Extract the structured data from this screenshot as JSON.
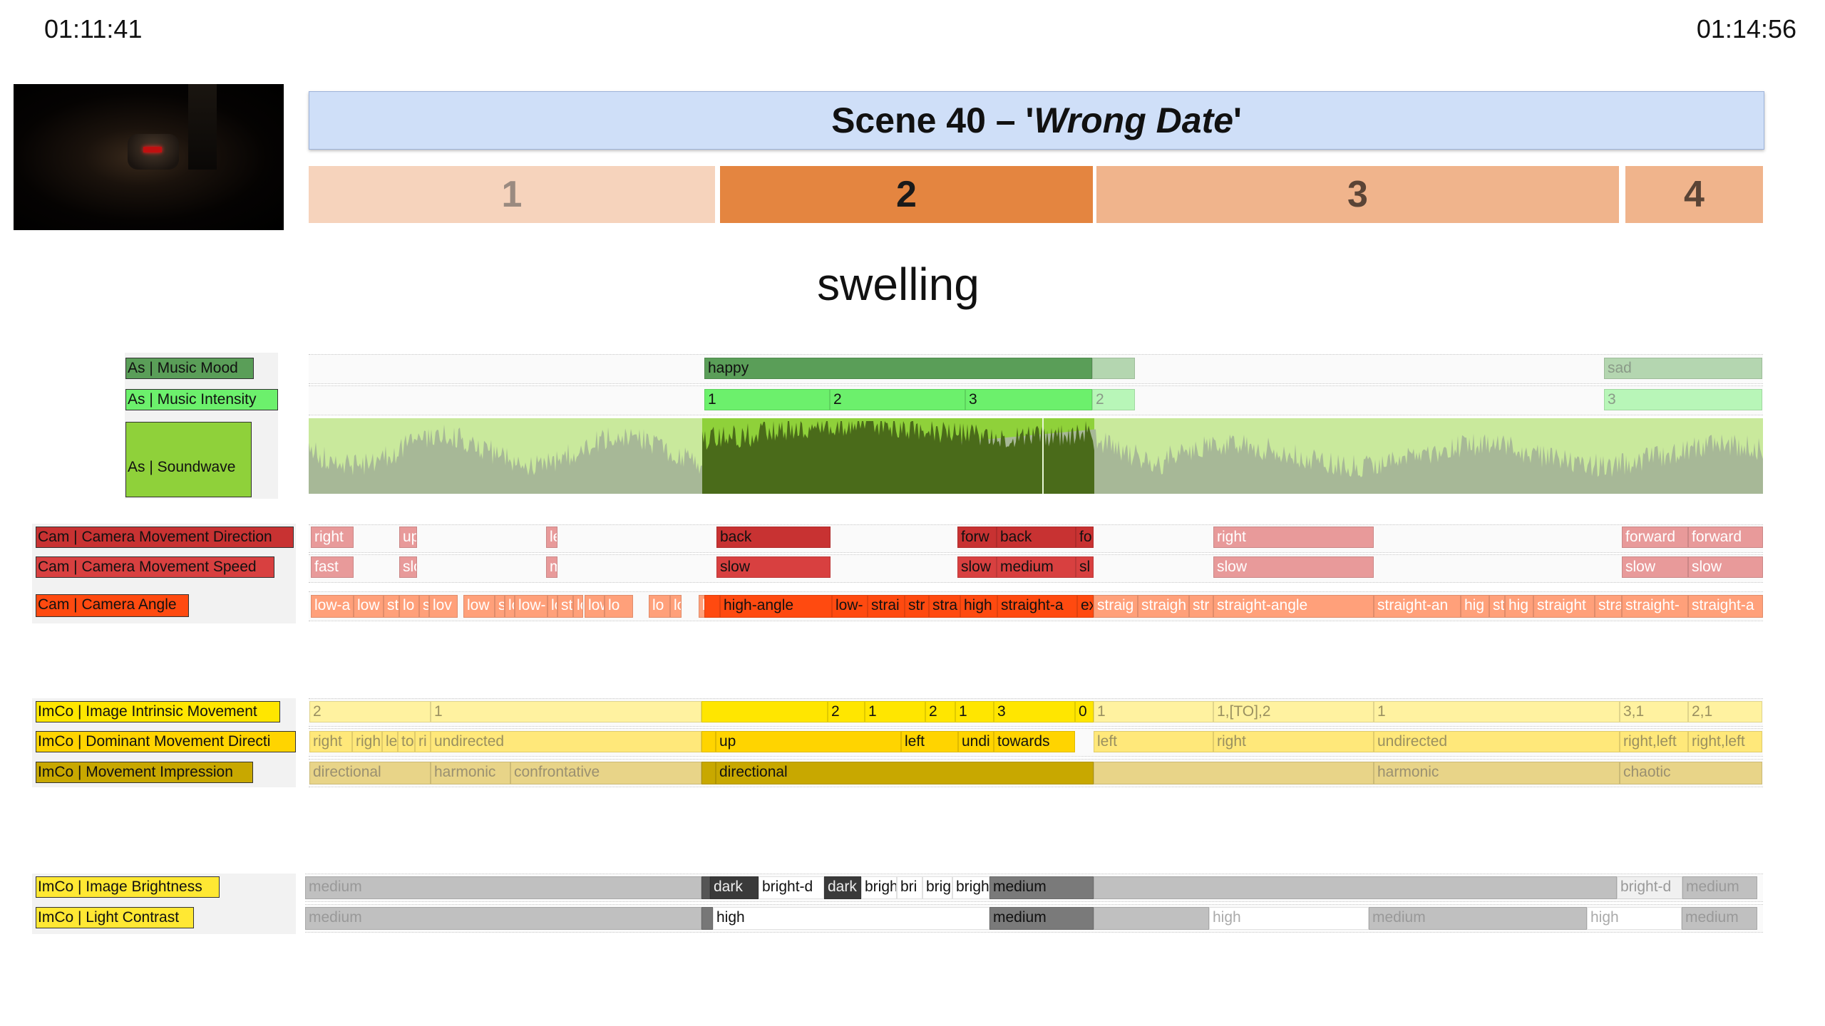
{
  "header": {
    "start_time": "01:11:41",
    "end_time": "01:14:56"
  },
  "video_thumbnail": {
    "icon": "video-frame-dark-room-clock"
  },
  "scene": {
    "prefix": "Scene 40 – '",
    "title": "Wrong Date",
    "suffix": "'",
    "segments": [
      {
        "label": "1",
        "color": "#f6d3bc",
        "text_color": "#9a8a80"
      },
      {
        "label": "2",
        "color": "#e48540",
        "text_color": "#1a1a1a"
      },
      {
        "label": "3",
        "color": "#f0b48c",
        "text_color": "#5a4436"
      },
      {
        "label": "4",
        "color": "#f0b48c",
        "text_color": "#5a4436"
      }
    ]
  },
  "mood_word": "swelling",
  "tracks": {
    "music_mood": {
      "label": "As | Music Mood",
      "color": "#5a9e58",
      "annotations": [
        "happy",
        "",
        "sad"
      ]
    },
    "music_intensity": {
      "label": "As | Music Intensity",
      "color": "#6cf06c",
      "annotations": [
        "1",
        "2",
        "3",
        "2",
        "3"
      ]
    },
    "soundwave": {
      "label": "As | Soundwave",
      "color": "#8fd13a"
    },
    "cam_direction": {
      "label": "Cam | Camera Movement Direction",
      "color": "#c83232",
      "annotations": [
        "right",
        "up",
        "le",
        "back",
        "forw",
        "back",
        "fo",
        "right",
        "forward",
        "forward"
      ]
    },
    "cam_speed": {
      "label": "Cam | Camera Movement Speed",
      "color": "#d84040",
      "annotations": [
        "fast",
        "slo",
        "m",
        "slow",
        "slow",
        "medium",
        "sl",
        "slow",
        "slow",
        "slow"
      ]
    },
    "cam_angle": {
      "label": "Cam | Camera Angle",
      "color": "#ff4a10",
      "annotations": [
        "low-a",
        "low",
        "st",
        "lo",
        "s",
        "lov",
        "low",
        "s",
        "lo",
        "low-",
        "lo",
        "stra",
        "lo",
        "low-",
        "lo",
        "lo",
        "low",
        "lo",
        "",
        "high-angle",
        "low-",
        "strai",
        "str",
        "stra",
        "high",
        "straight-a",
        "ex",
        "straig",
        "straigh",
        "str",
        "straight-angle",
        "straight-an",
        "hig",
        "st",
        "hig",
        "straight",
        "stra",
        "straight-",
        "straight-a"
      ]
    },
    "intrinsic_movement": {
      "label": "ImCo | Image Intrinsic Movement",
      "color": "#ffe600",
      "annotations": [
        "2",
        "1",
        "",
        "2",
        "1",
        "2",
        "1",
        "3",
        "0",
        "1",
        "1,[TO],2",
        "1",
        "3,1",
        "2,1"
      ]
    },
    "dominant_direction": {
      "label": "ImCo | Dominant Movement Directi",
      "color": "#ffd400",
      "annotations": [
        "right",
        "righ",
        "le",
        "to",
        "ri",
        "undirected",
        "",
        "up",
        "left",
        "undi",
        "towards",
        "left",
        "right",
        "undirected",
        "right,left",
        "right,left"
      ]
    },
    "movement_impression": {
      "label": "ImCo | Movement Impression",
      "color": "#c8a800",
      "annotations": [
        "directional",
        "harmonic",
        "confrontative",
        "",
        "directional",
        "",
        "harmonic",
        "chaotic"
      ]
    },
    "brightness": {
      "label": "ImCo | Image Brightness",
      "color": "#ffe833",
      "annotations": [
        "medium",
        "",
        "dark",
        "bright-d",
        "dark",
        "brigh",
        "bri",
        "brig",
        "brigh",
        "medium",
        "",
        "bright-d",
        "medium"
      ]
    },
    "light_contrast": {
      "label": "ImCo | Light Contrast",
      "color": "#ffe833",
      "annotations": [
        "medium",
        "",
        "high",
        "medium",
        "",
        "high",
        "medium",
        "high",
        "medium"
      ]
    }
  }
}
